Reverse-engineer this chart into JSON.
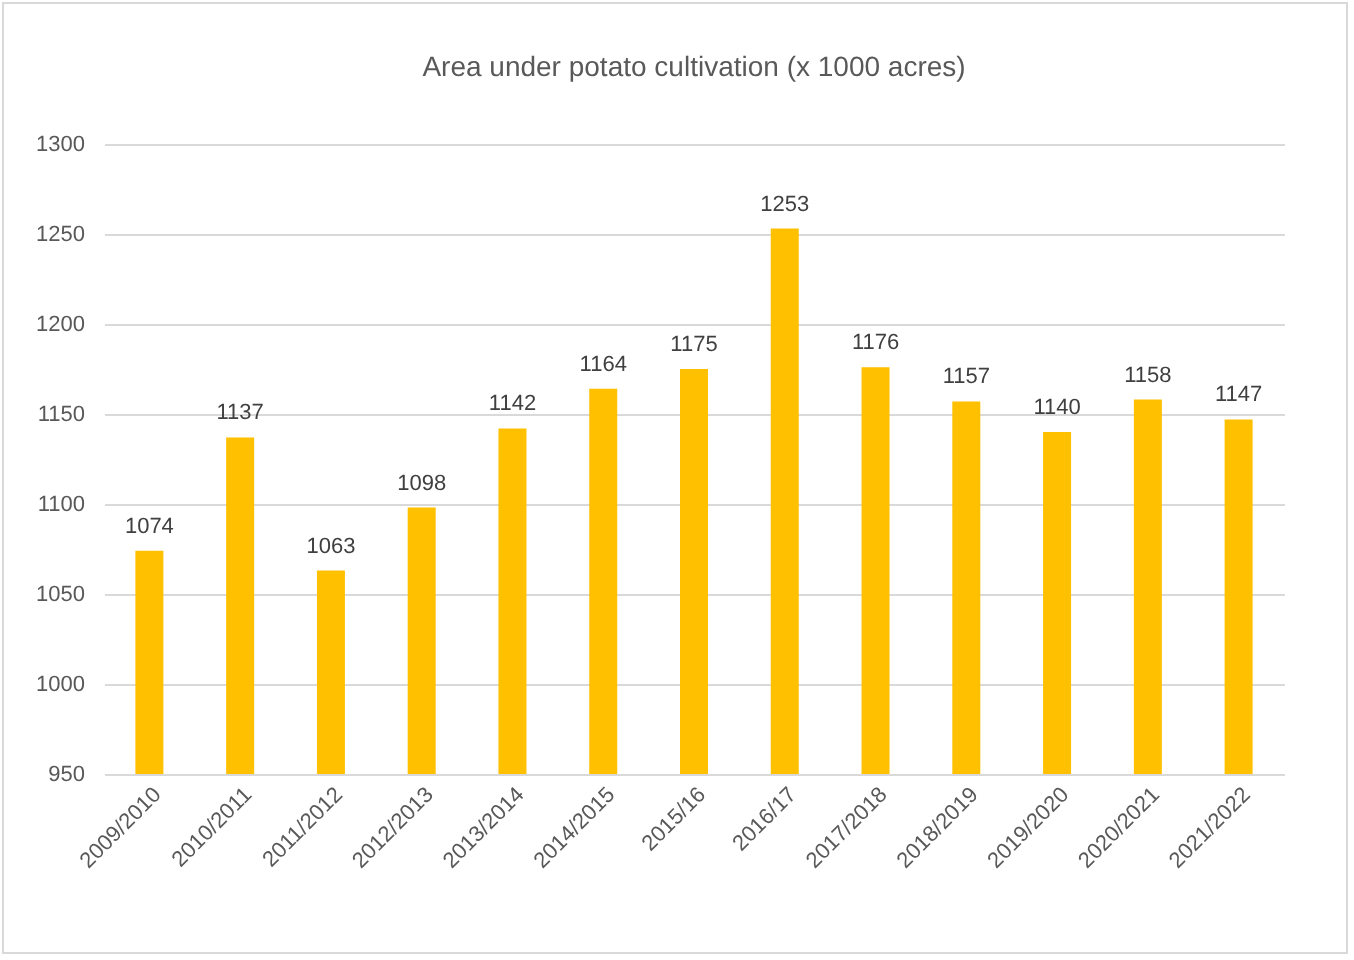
{
  "chart_data": {
    "type": "bar",
    "title": "Area under potato cultivation (x 1000 acres)",
    "categories": [
      "2009/2010",
      "2010/2011",
      "2011/2012",
      "2012/2013",
      "2013/2014",
      "2014/2015",
      "2015/16",
      "2016/17",
      "2017/2018",
      "2018/2019",
      "2019/2020",
      "2020/2021",
      "2021/2022"
    ],
    "values": [
      1074,
      1137,
      1063,
      1098,
      1142,
      1164,
      1175,
      1253,
      1176,
      1157,
      1140,
      1158,
      1147
    ],
    "color": "#ffc000",
    "ylim": [
      950,
      1300
    ],
    "yticks": [
      950,
      1000,
      1050,
      1100,
      1150,
      1200,
      1250,
      1300
    ],
    "grid": "y",
    "data_labels": true
  }
}
